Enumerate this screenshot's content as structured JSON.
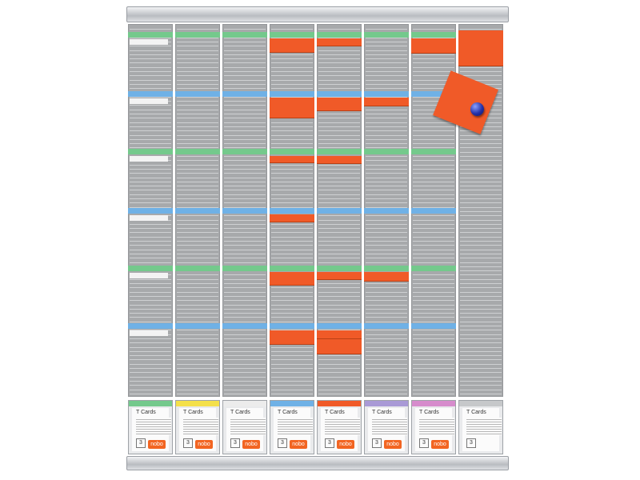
{
  "board": {
    "pocket_title": "T Cards",
    "pocket_number": "3",
    "brand": "nobo",
    "header_colors": [
      "#74c98c",
      "#6fb1e6",
      "#74c98c",
      "#6fb1e6",
      "#74c98c",
      "#6fb1e6"
    ],
    "pocket_colors": [
      "#74c98c",
      "#f4e04a",
      "#ececec",
      "#6fb1e6",
      "#f05a28",
      "#a99ad6",
      "#d68ccc",
      "#c6c8ca"
    ],
    "card_color": "#f05a28",
    "magnet_color": "#2431a8"
  }
}
